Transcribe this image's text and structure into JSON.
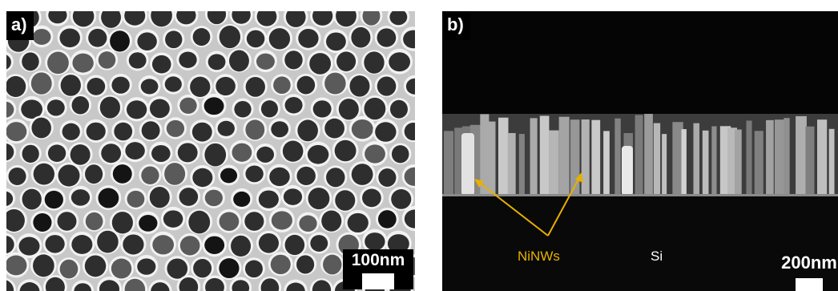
{
  "panels": {
    "a": {
      "label": "a)",
      "scale_bar": "100nm",
      "colors": {
        "membrane": "#c8c8c8",
        "pore": "#2e2e2e",
        "rim": "#f2f2f2"
      }
    },
    "b": {
      "label": "b)",
      "scale_bar": "200nm",
      "annotations": {
        "nanowires": "NiNWs",
        "substrate": "Si"
      },
      "colors": {
        "annotation": "#e8b000",
        "wires": "#9a9a9a",
        "background": "#050505"
      }
    }
  }
}
